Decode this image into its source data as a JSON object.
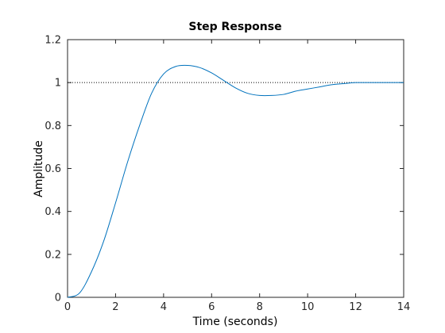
{
  "chart_data": {
    "type": "line",
    "title": "Step Response",
    "xlabel": "Time (seconds)",
    "ylabel": "Amplitude",
    "xlim": [
      0,
      14
    ],
    "ylim": [
      0,
      1.2
    ],
    "x_ticks": [
      0,
      2,
      4,
      6,
      8,
      10,
      12,
      14
    ],
    "x_tick_labels": [
      "0",
      "2",
      "4",
      "6",
      "8",
      "10",
      "12",
      "14"
    ],
    "y_ticks": [
      0,
      0.2,
      0.4,
      0.6,
      0.8,
      1,
      1.2
    ],
    "y_tick_labels": [
      "0",
      "0.2",
      "0.4",
      "0.6",
      "0.8",
      "1",
      "1.2"
    ],
    "grid": false,
    "reference_line": {
      "y": 1,
      "style": "dotted",
      "color": "#000000"
    },
    "series": [
      {
        "color": "#0072bd",
        "x": [
          0,
          0.5,
          1,
          1.5,
          2,
          2.5,
          3,
          3.5,
          4,
          4.5,
          5,
          5.5,
          6,
          6.5,
          7,
          7.5,
          8,
          8.5,
          9,
          9.5,
          10,
          10.5,
          11,
          11.5,
          12,
          12.5,
          13,
          13.5,
          14
        ],
        "y": [
          0,
          0.02,
          0.12,
          0.26,
          0.44,
          0.63,
          0.8,
          0.95,
          1.04,
          1.075,
          1.08,
          1.07,
          1.045,
          1.01,
          0.975,
          0.95,
          0.94,
          0.94,
          0.945,
          0.96,
          0.97,
          0.98,
          0.99,
          0.995,
          1.0,
          1.0,
          1.0,
          1.0,
          1.0
        ]
      }
    ]
  }
}
